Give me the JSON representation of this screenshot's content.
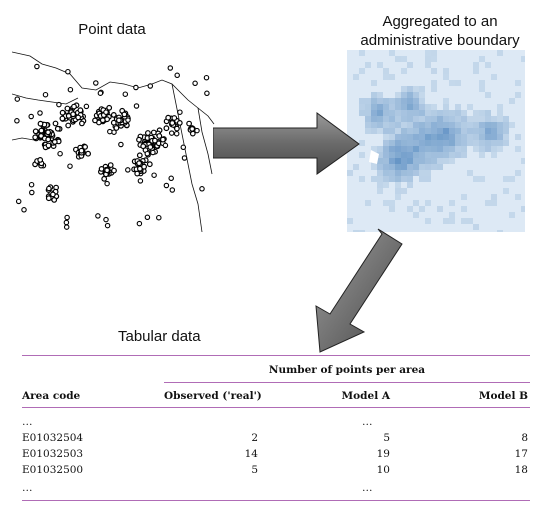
{
  "captions": {
    "point": "Point data",
    "aggregated_line1": "Aggregated to an",
    "aggregated_line2": "administrative boundary",
    "tabular": "Tabular data"
  },
  "colors": {
    "rule": "#b06cb6",
    "arrow": "#6e6e6e",
    "map_blue": "#2f6fb0"
  },
  "table": {
    "group_header": "Number of points per area",
    "columns": [
      "Area code",
      "Observed ('real')",
      "Model A",
      "Model B"
    ],
    "rows": [
      [
        "…",
        "",
        "…",
        ""
      ],
      [
        "E01032504",
        "2",
        "5",
        "8"
      ],
      [
        "E01032503",
        "14",
        "19",
        "17"
      ],
      [
        "E01032500",
        "5",
        "10",
        "18"
      ],
      [
        "…",
        "",
        "…",
        ""
      ]
    ]
  }
}
